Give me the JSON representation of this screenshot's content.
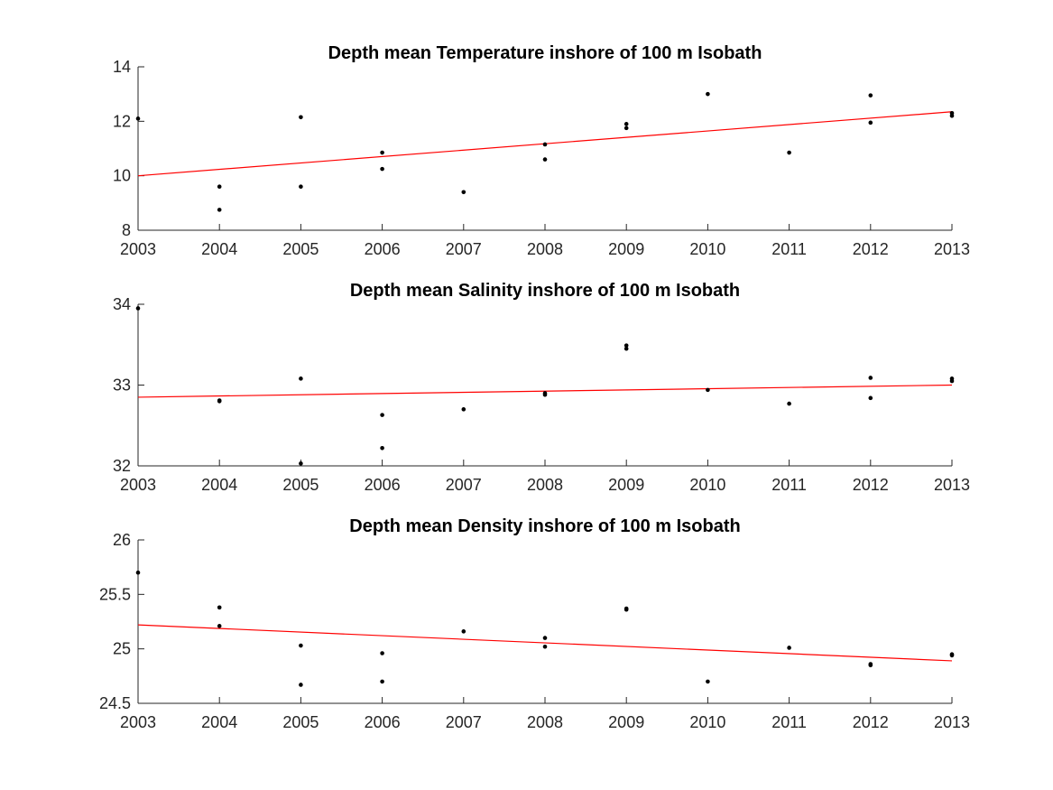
{
  "chart_data": [
    {
      "type": "scatter",
      "title": "Depth mean Temperature inshore of 100 m Isobath",
      "xlabel": "",
      "ylabel": "",
      "xlim": [
        2003,
        2013
      ],
      "ylim": [
        8,
        14
      ],
      "xticks": [
        "2003",
        "2004",
        "2005",
        "2006",
        "2007",
        "2008",
        "2009",
        "2010",
        "2011",
        "2012",
        "2013"
      ],
      "yticks": [
        "8",
        "10",
        "12",
        "14"
      ],
      "grid": false,
      "series": [
        {
          "x": [
            2003,
            2004,
            2004,
            2005,
            2005,
            2006,
            2006,
            2007,
            2008,
            2008,
            2009,
            2009,
            2010,
            2011,
            2012,
            2012,
            2013,
            2013
          ],
          "y": [
            12.1,
            9.6,
            8.75,
            12.15,
            9.6,
            10.85,
            10.25,
            9.4,
            11.15,
            10.6,
            11.9,
            11.75,
            13.0,
            10.85,
            12.95,
            11.95,
            12.3,
            12.2
          ]
        }
      ],
      "trendline": {
        "x": [
          2003,
          2013
        ],
        "y": [
          10.0,
          12.35
        ],
        "color": "#ff0000"
      }
    },
    {
      "type": "scatter",
      "title": "Depth mean Salinity inshore of 100 m Isobath",
      "xlabel": "",
      "ylabel": "",
      "xlim": [
        2003,
        2013
      ],
      "ylim": [
        32,
        34
      ],
      "xticks": [
        "2003",
        "2004",
        "2005",
        "2006",
        "2007",
        "2008",
        "2009",
        "2010",
        "2011",
        "2012",
        "2013"
      ],
      "yticks": [
        "32",
        "33",
        "34"
      ],
      "grid": false,
      "series": [
        {
          "x": [
            2003,
            2004,
            2004,
            2005,
            2005,
            2006,
            2006,
            2007,
            2008,
            2008,
            2009,
            2009,
            2010,
            2011,
            2012,
            2012,
            2013,
            2013
          ],
          "y": [
            33.95,
            32.8,
            32.81,
            33.08,
            32.03,
            32.63,
            32.22,
            32.7,
            32.88,
            32.9,
            33.49,
            33.45,
            32.94,
            32.77,
            33.09,
            32.84,
            33.05,
            33.08
          ]
        }
      ],
      "trendline": {
        "x": [
          2003,
          2013
        ],
        "y": [
          32.85,
          33.0
        ],
        "color": "#ff0000"
      }
    },
    {
      "type": "scatter",
      "title": "Depth mean Density inshore of 100 m Isobath",
      "xlabel": "",
      "ylabel": "",
      "xlim": [
        2003,
        2013
      ],
      "ylim": [
        24.5,
        26
      ],
      "xticks": [
        "2003",
        "2004",
        "2005",
        "2006",
        "2007",
        "2008",
        "2009",
        "2010",
        "2011",
        "2012",
        "2013"
      ],
      "yticks": [
        "24.5",
        "25",
        "25.5",
        "26"
      ],
      "grid": false,
      "series": [
        {
          "x": [
            2003,
            2004,
            2004,
            2005,
            2005,
            2006,
            2006,
            2007,
            2008,
            2008,
            2009,
            2009,
            2010,
            2011,
            2012,
            2012,
            2013,
            2013
          ],
          "y": [
            25.7,
            25.38,
            25.21,
            25.03,
            24.67,
            24.96,
            24.7,
            25.16,
            25.1,
            25.02,
            25.37,
            25.36,
            24.7,
            25.01,
            24.86,
            24.85,
            24.95,
            24.94
          ]
        }
      ],
      "trendline": {
        "x": [
          2003,
          2013
        ],
        "y": [
          25.22,
          24.89
        ],
        "color": "#ff0000"
      }
    }
  ]
}
